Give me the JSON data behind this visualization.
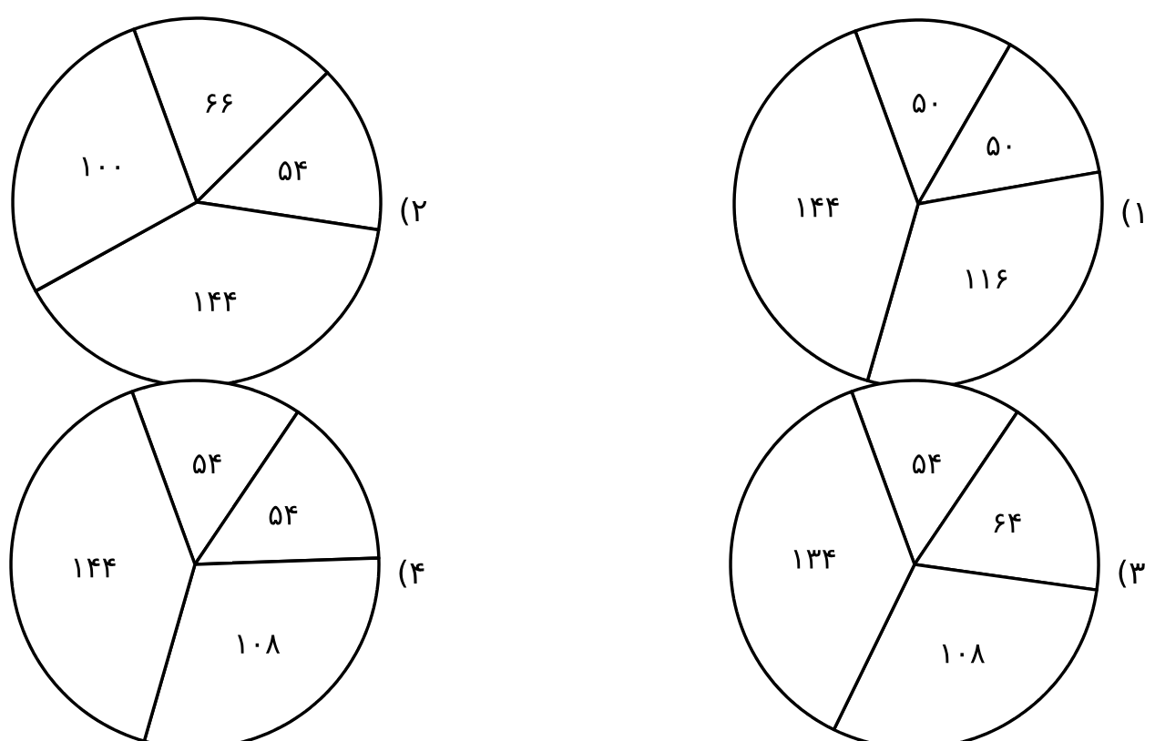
{
  "chart_data": [
    {
      "type": "pie",
      "title": "(۱",
      "categories": [
        null,
        null,
        null,
        null
      ],
      "values": [
        50,
        50,
        116,
        144
      ],
      "value_labels": [
        "۵۰",
        "۵۰",
        "۱۱۶",
        "۱۴۴"
      ],
      "colors": [
        "#ffffff",
        "#ffffff",
        "#ffffff",
        "#ffffff"
      ]
    },
    {
      "type": "pie",
      "title": "(۲",
      "categories": [
        null,
        null,
        null,
        null
      ],
      "values": [
        66,
        54,
        144,
        100
      ],
      "value_labels": [
        "۶۶",
        "۵۴",
        "۱۴۴",
        "۱۰۰"
      ],
      "colors": [
        "#ffffff",
        "#ffffff",
        "#ffffff",
        "#ffffff"
      ]
    },
    {
      "type": "pie",
      "title": "(۳",
      "categories": [
        null,
        null,
        null,
        null
      ],
      "values": [
        54,
        64,
        108,
        134
      ],
      "value_labels": [
        "۵۴",
        "۶۴",
        "۱۰۸",
        "۱۳۴"
      ],
      "colors": [
        "#ffffff",
        "#ffffff",
        "#ffffff",
        "#ffffff"
      ]
    },
    {
      "type": "pie",
      "title": "(۴",
      "categories": [
        null,
        null,
        null,
        null
      ],
      "values": [
        54,
        54,
        108,
        144
      ],
      "value_labels": [
        "۵۴",
        "۵۴",
        "۱۰۸",
        "۱۴۴"
      ],
      "colors": [
        "#ffffff",
        "#ffffff",
        "#ffffff",
        "#ffffff"
      ]
    }
  ]
}
